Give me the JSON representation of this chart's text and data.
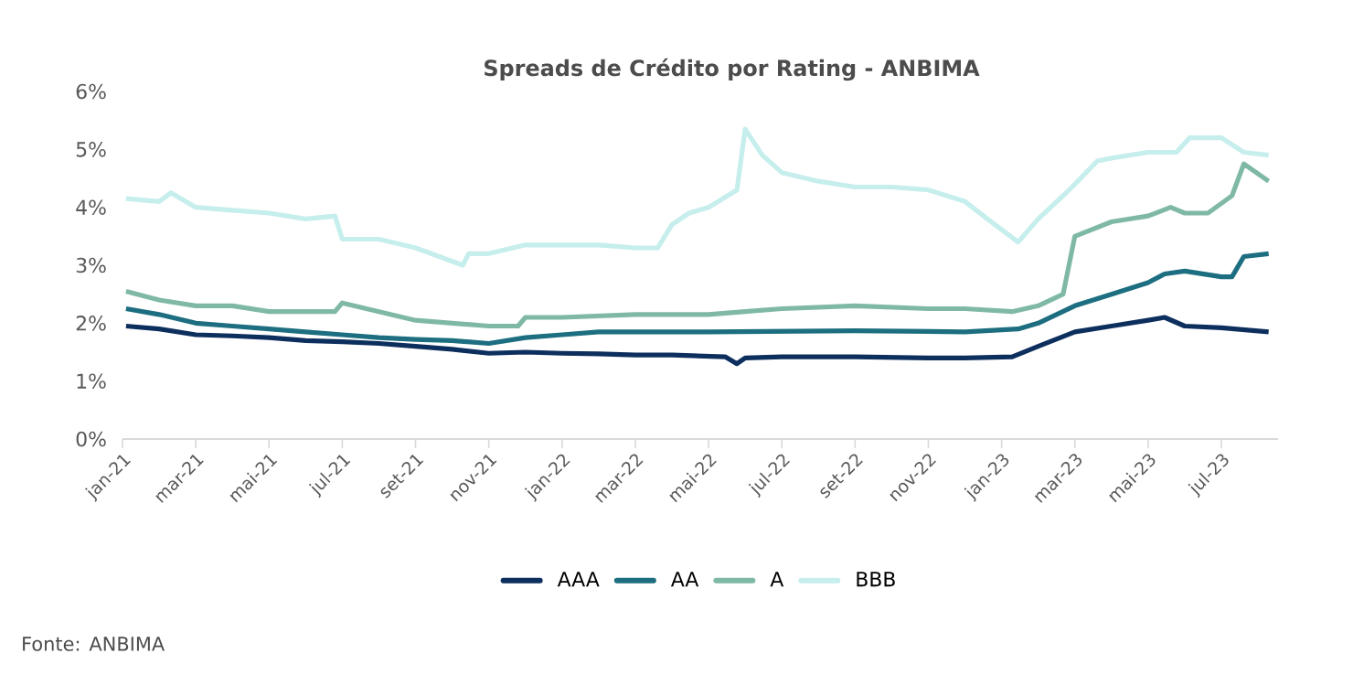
{
  "chart_data": {
    "type": "line",
    "title": "Spreads de Crédito por Rating - ANBIMA",
    "xlim": [
      "2021-01-01",
      "2023-08-18"
    ],
    "xticks": [
      {
        "value": "2021-01",
        "label": "jan-21"
      },
      {
        "value": "2021-03",
        "label": "mar-21"
      },
      {
        "value": "2021-05",
        "label": "mai-21"
      },
      {
        "value": "2021-07",
        "label": "jul-21"
      },
      {
        "value": "2021-09",
        "label": "set-21"
      },
      {
        "value": "2021-11",
        "label": "nov-21"
      },
      {
        "value": "2022-01",
        "label": "jan-22"
      },
      {
        "value": "2022-03",
        "label": "mar-22"
      },
      {
        "value": "2022-05",
        "label": "mai-22"
      },
      {
        "value": "2022-07",
        "label": "jul-22"
      },
      {
        "value": "2022-09",
        "label": "set-22"
      },
      {
        "value": "2022-11",
        "label": "nov-22"
      },
      {
        "value": "2023-01",
        "label": "jan-23"
      },
      {
        "value": "2023-03",
        "label": "mar-23"
      },
      {
        "value": "2023-05",
        "label": "mai-23"
      },
      {
        "value": "2023-07",
        "label": "jul-23"
      }
    ],
    "ylim": [
      0,
      6
    ],
    "yticks": [
      {
        "value": 0,
        "label": "0%"
      },
      {
        "value": 1,
        "label": "1%"
      },
      {
        "value": 2,
        "label": "2%"
      },
      {
        "value": 3,
        "label": "3%"
      },
      {
        "value": 4,
        "label": "4%"
      },
      {
        "value": 5,
        "label": "5%"
      },
      {
        "value": 6,
        "label": "6%"
      }
    ],
    "legend": "bottom",
    "marker": "none",
    "line_style": "solid",
    "annotations": [
      "Fonte: ANBIMA"
    ],
    "series": [
      {
        "name": "AAA",
        "color": "#0d2f5e",
        "x": [
          "2021-01-04",
          "2021-02-01",
          "2021-03-01",
          "2021-04-01",
          "2021-05-01",
          "2021-06-01",
          "2021-07-01",
          "2021-08-01",
          "2021-09-01",
          "2021-10-01",
          "2021-11-01",
          "2021-12-01",
          "2022-01-01",
          "2022-02-01",
          "2022-03-01",
          "2022-04-01",
          "2022-05-15",
          "2022-05-25",
          "2022-06-01",
          "2022-07-01",
          "2022-09-01",
          "2022-11-01",
          "2022-12-01",
          "2023-01-10",
          "2023-02-01",
          "2023-03-01",
          "2023-04-01",
          "2023-05-01",
          "2023-05-15",
          "2023-06-01",
          "2023-07-01",
          "2023-08-10"
        ],
        "values": [
          1.95,
          1.9,
          1.8,
          1.78,
          1.75,
          1.7,
          1.68,
          1.65,
          1.6,
          1.55,
          1.48,
          1.5,
          1.48,
          1.47,
          1.45,
          1.45,
          1.42,
          1.3,
          1.4,
          1.42,
          1.42,
          1.4,
          1.4,
          1.42,
          1.6,
          1.85,
          1.95,
          2.05,
          2.1,
          1.95,
          1.92,
          1.85
        ]
      },
      {
        "name": "AA",
        "color": "#1c6e80",
        "x": [
          "2021-01-04",
          "2021-02-01",
          "2021-03-01",
          "2021-04-01",
          "2021-05-01",
          "2021-06-01",
          "2021-07-01",
          "2021-08-01",
          "2021-09-01",
          "2021-10-01",
          "2021-11-01",
          "2021-12-01",
          "2022-01-01",
          "2022-02-01",
          "2022-05-01",
          "2022-09-01",
          "2022-12-01",
          "2023-01-15",
          "2023-02-01",
          "2023-03-01",
          "2023-04-01",
          "2023-05-01",
          "2023-05-15",
          "2023-06-01",
          "2023-07-01",
          "2023-07-10",
          "2023-07-20",
          "2023-08-10"
        ],
        "values": [
          2.25,
          2.15,
          2.0,
          1.95,
          1.9,
          1.85,
          1.8,
          1.75,
          1.72,
          1.7,
          1.65,
          1.75,
          1.8,
          1.85,
          1.85,
          1.87,
          1.85,
          1.9,
          2.0,
          2.3,
          2.5,
          2.7,
          2.85,
          2.9,
          2.8,
          2.8,
          3.15,
          3.2
        ]
      },
      {
        "name": "A",
        "color": "#7fb9a6",
        "x": [
          "2021-01-04",
          "2021-02-01",
          "2021-03-01",
          "2021-04-01",
          "2021-05-01",
          "2021-06-25",
          "2021-07-01",
          "2021-08-01",
          "2021-09-01",
          "2021-10-01",
          "2021-11-01",
          "2021-11-25",
          "2021-12-01",
          "2022-01-01",
          "2022-03-01",
          "2022-05-01",
          "2022-06-01",
          "2022-07-01",
          "2022-09-01",
          "2022-11-01",
          "2022-12-01",
          "2023-01-10",
          "2023-02-01",
          "2023-02-20",
          "2023-03-01",
          "2023-04-01",
          "2023-05-01",
          "2023-05-20",
          "2023-06-01",
          "2023-06-20",
          "2023-07-10",
          "2023-07-20",
          "2023-08-10"
        ],
        "values": [
          2.55,
          2.4,
          2.3,
          2.3,
          2.2,
          2.2,
          2.35,
          2.2,
          2.05,
          2.0,
          1.95,
          1.95,
          2.1,
          2.1,
          2.15,
          2.15,
          2.2,
          2.25,
          2.3,
          2.25,
          2.25,
          2.2,
          2.3,
          2.5,
          3.5,
          3.75,
          3.85,
          4.0,
          3.9,
          3.9,
          4.2,
          4.75,
          4.45
        ]
      },
      {
        "name": "BBB",
        "color": "#c5eeec",
        "x": [
          "2021-01-04",
          "2021-02-01",
          "2021-02-10",
          "2021-03-01",
          "2021-04-01",
          "2021-05-01",
          "2021-06-01",
          "2021-06-25",
          "2021-07-01",
          "2021-08-01",
          "2021-09-01",
          "2021-10-10",
          "2021-10-15",
          "2021-11-01",
          "2021-12-01",
          "2022-01-01",
          "2022-02-01",
          "2022-03-01",
          "2022-03-20",
          "2022-04-01",
          "2022-04-15",
          "2022-05-01",
          "2022-05-25",
          "2022-06-01",
          "2022-06-15",
          "2022-07-01",
          "2022-08-01",
          "2022-09-01",
          "2022-10-01",
          "2022-11-01",
          "2022-12-01",
          "2022-12-20",
          "2023-01-15",
          "2023-02-01",
          "2023-02-20",
          "2023-03-01",
          "2023-03-20",
          "2023-04-01",
          "2023-05-01",
          "2023-05-25",
          "2023-06-05",
          "2023-07-01",
          "2023-07-20",
          "2023-08-10"
        ],
        "values": [
          4.15,
          4.1,
          4.25,
          4.0,
          3.95,
          3.9,
          3.8,
          3.85,
          3.45,
          3.45,
          3.3,
          3.0,
          3.2,
          3.2,
          3.35,
          3.35,
          3.35,
          3.3,
          3.3,
          3.7,
          3.9,
          4.0,
          4.3,
          5.35,
          4.9,
          4.6,
          4.45,
          4.35,
          4.35,
          4.3,
          4.1,
          3.8,
          3.4,
          3.8,
          4.2,
          4.4,
          4.8,
          4.85,
          4.95,
          4.95,
          5.2,
          5.2,
          4.95,
          4.9
        ]
      }
    ]
  }
}
